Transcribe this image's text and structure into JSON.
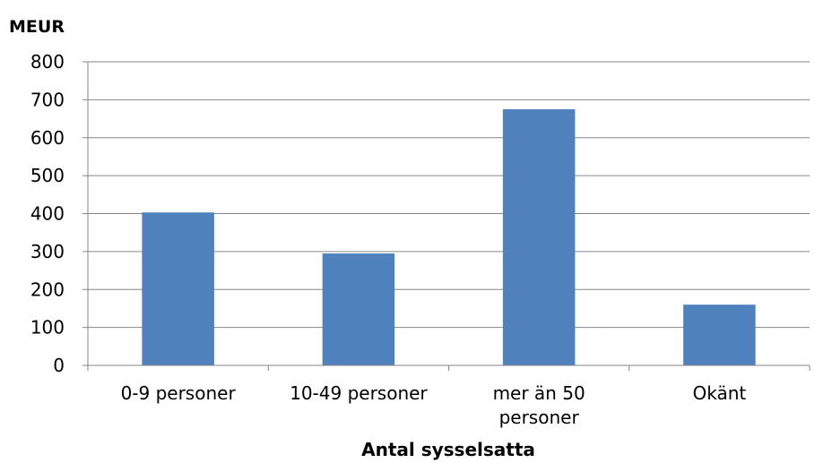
{
  "chart_data": {
    "type": "bar",
    "categories": [
      "0-9 personer",
      "10-49 personer",
      "mer än 50 personer",
      "Okänt"
    ],
    "category_lines": [
      [
        "0-9 personer"
      ],
      [
        "10-49 personer"
      ],
      [
        "mer än 50",
        "personer"
      ],
      [
        "Okänt"
      ]
    ],
    "values": [
      403,
      295,
      675,
      160
    ],
    "ylabel": "MEUR",
    "xlabel": "Antal sysselsatta",
    "ylim": [
      0,
      800
    ],
    "yticks": [
      "0",
      "100",
      "200",
      "300",
      "400",
      "500",
      "600",
      "700",
      "800"
    ],
    "grid": true,
    "colors": {
      "bar": "#4F81BD",
      "grid": "#868686",
      "axis": "#868686"
    }
  }
}
